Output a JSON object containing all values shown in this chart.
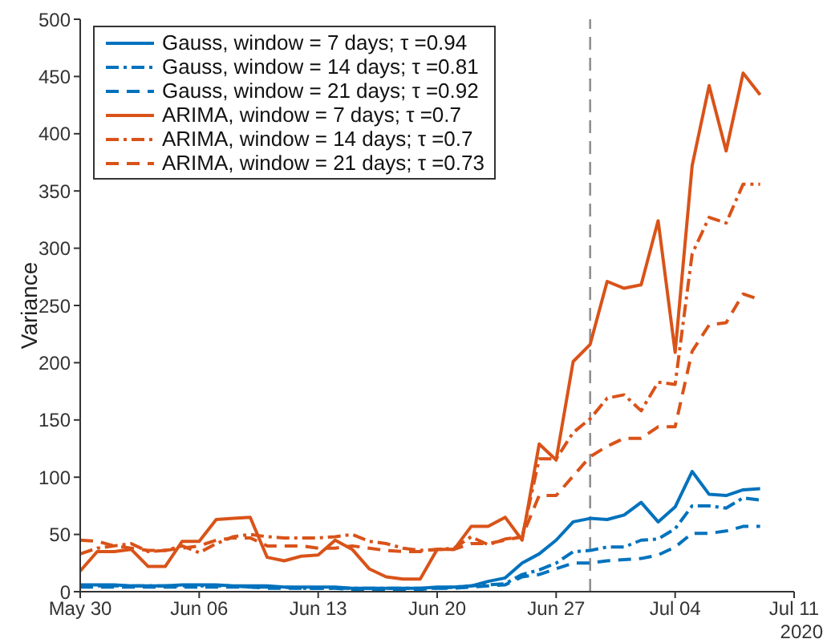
{
  "chart_data": {
    "type": "line",
    "ylabel": "Variance",
    "annotations": [
      "2020"
    ],
    "x": [
      "2020-05-30",
      "2020-05-31",
      "2020-06-01",
      "2020-06-02",
      "2020-06-03",
      "2020-06-04",
      "2020-06-05",
      "2020-06-06",
      "2020-06-07",
      "2020-06-08",
      "2020-06-09",
      "2020-06-10",
      "2020-06-11",
      "2020-06-12",
      "2020-06-13",
      "2020-06-14",
      "2020-06-15",
      "2020-06-16",
      "2020-06-17",
      "2020-06-18",
      "2020-06-19",
      "2020-06-20",
      "2020-06-21",
      "2020-06-22",
      "2020-06-23",
      "2020-06-24",
      "2020-06-25",
      "2020-06-26",
      "2020-06-27",
      "2020-06-28",
      "2020-06-29",
      "2020-06-30",
      "2020-07-01",
      "2020-07-02",
      "2020-07-03",
      "2020-07-04",
      "2020-07-05",
      "2020-07-06",
      "2020-07-07",
      "2020-07-08",
      "2020-07-09"
    ],
    "series": [
      {
        "name": "Gauss, window = 7 days;  τ =0.94",
        "color": "#0072bd",
        "line_style": "solid",
        "values": [
          6,
          6,
          6,
          5,
          5,
          5,
          6,
          6,
          6,
          5,
          5,
          5,
          4,
          4,
          4,
          4,
          3,
          3,
          3,
          3,
          3,
          4,
          4,
          5,
          9,
          12,
          25,
          33,
          45,
          61,
          64,
          63,
          67,
          78,
          61,
          74,
          105,
          85,
          84,
          89,
          90
        ]
      },
      {
        "name": "Gauss, window = 14 days;  τ =0.81",
        "color": "#0072bd",
        "line_style": "dash-dot",
        "values": [
          5,
          5,
          5,
          5,
          5,
          5,
          5,
          5,
          5,
          5,
          4,
          4,
          4,
          3,
          3,
          3,
          3,
          3,
          3,
          3,
          3,
          3,
          4,
          5,
          6,
          7,
          15,
          19,
          25,
          35,
          36,
          39,
          39,
          45,
          46,
          55,
          75,
          75,
          73,
          82,
          80
        ]
      },
      {
        "name": "Gauss, window = 21 days;  τ =0.92",
        "color": "#0072bd",
        "line_style": "dashed",
        "values": [
          4,
          4,
          4,
          4,
          4,
          4,
          4,
          4,
          4,
          4,
          4,
          3,
          3,
          3,
          3,
          3,
          2,
          2,
          2,
          2,
          2,
          3,
          3,
          4,
          5,
          6,
          13,
          15,
          20,
          25,
          25,
          27,
          28,
          29,
          32,
          39,
          51,
          51,
          53,
          57,
          57
        ]
      },
      {
        "name": "ARIMA, window = 7 days;  τ =0.7",
        "color": "#d95319",
        "line_style": "solid",
        "values": [
          18,
          35,
          35,
          37,
          22,
          22,
          44,
          44,
          63,
          64,
          65,
          30,
          27,
          31,
          32,
          45,
          37,
          20,
          13,
          11,
          11,
          37,
          37,
          57,
          57,
          65,
          45,
          129,
          115,
          201,
          216,
          271,
          265,
          268,
          324,
          209,
          372,
          442,
          385,
          453,
          434
        ]
      },
      {
        "name": "ARIMA, window = 14 days;  τ =0.7",
        "color": "#d95319",
        "line_style": "dash-dot",
        "values": [
          33,
          38,
          40,
          42,
          35,
          36,
          40,
          34,
          42,
          48,
          50,
          48,
          47,
          47,
          47,
          48,
          50,
          44,
          42,
          38,
          36,
          37,
          38,
          48,
          41,
          46,
          48,
          116,
          116,
          139,
          151,
          169,
          172,
          158,
          183,
          181,
          295,
          327,
          322,
          356,
          356
        ]
      },
      {
        "name": "ARIMA, window = 21 days;  τ =0.73",
        "color": "#d95319",
        "line_style": "dashed",
        "values": [
          45,
          44,
          40,
          38,
          36,
          36,
          38,
          40,
          45,
          47,
          47,
          40,
          40,
          40,
          38,
          38,
          40,
          38,
          36,
          35,
          35,
          37,
          37,
          42,
          42,
          45,
          48,
          84,
          84,
          101,
          118,
          127,
          134,
          134,
          144,
          144,
          210,
          233,
          235,
          260,
          255
        ]
      }
    ],
    "xlim": [
      "2020-05-30",
      "2020-07-11"
    ],
    "xticks": [
      {
        "value": "2020-05-30",
        "label": "May 30"
      },
      {
        "value": "2020-06-06",
        "label": "Jun 06"
      },
      {
        "value": "2020-06-13",
        "label": "Jun 13"
      },
      {
        "value": "2020-06-20",
        "label": "Jun 20"
      },
      {
        "value": "2020-06-27",
        "label": "Jun 27"
      },
      {
        "value": "2020-07-04",
        "label": "Jul 04"
      },
      {
        "value": "2020-07-11",
        "label": "Jul 11"
      }
    ],
    "ylim": [
      0,
      500
    ],
    "yticks": [
      0,
      50,
      100,
      150,
      200,
      250,
      300,
      350,
      400,
      450,
      500
    ],
    "ref_lines": [
      {
        "axis": "x",
        "value": "2020-06-29",
        "color": "#909090",
        "line_style": "dashed"
      }
    ],
    "grid": false,
    "legend": "top left",
    "marker": "none"
  }
}
